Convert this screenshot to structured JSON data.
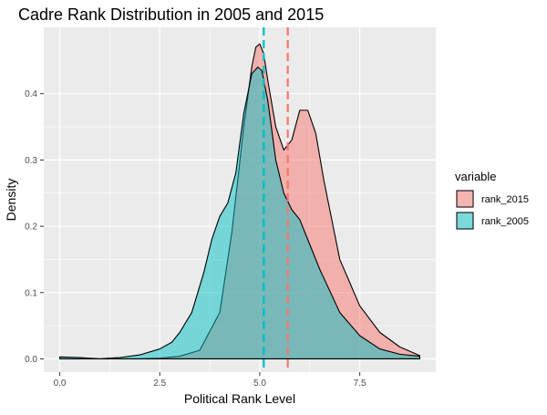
{
  "chart_data": {
    "type": "area",
    "title": "Cadre Rank Distribution in 2005 and 2015",
    "xlabel": "Political Rank Level",
    "ylabel": "Density",
    "xlim": [
      -0.4,
      9.4
    ],
    "ylim": [
      -0.02,
      0.5
    ],
    "x_ticks": [
      0.0,
      2.5,
      5.0,
      7.5
    ],
    "x_tick_labels": [
      "0.0",
      "2.5",
      "5.0",
      "7.5"
    ],
    "y_ticks": [
      0.0,
      0.1,
      0.2,
      0.3,
      0.4
    ],
    "y_tick_labels": [
      "0.0",
      "0.1",
      "0.2",
      "0.3",
      "0.4"
    ],
    "grid": true,
    "legend": {
      "title": "variable",
      "placement": "right",
      "entries": [
        "rank_2015",
        "rank_2005"
      ]
    },
    "series": [
      {
        "name": "rank_2015",
        "fill": "#F8766D",
        "mean_line_x": 5.7,
        "x": [
          0.0,
          1.0,
          2.0,
          2.5,
          3.0,
          3.5,
          4.0,
          4.3,
          4.6,
          4.8,
          4.9,
          5.0,
          5.1,
          5.2,
          5.4,
          5.6,
          5.8,
          6.0,
          6.2,
          6.4,
          6.6,
          7.0,
          7.5,
          8.0,
          8.5,
          9.0
        ],
        "y": [
          0.0,
          0.0,
          0.0,
          0.001,
          0.004,
          0.013,
          0.07,
          0.19,
          0.35,
          0.44,
          0.47,
          0.475,
          0.46,
          0.42,
          0.35,
          0.315,
          0.33,
          0.375,
          0.375,
          0.34,
          0.27,
          0.15,
          0.08,
          0.04,
          0.018,
          0.005
        ]
      },
      {
        "name": "rank_2005",
        "fill": "#00BFC4",
        "mean_line_x": 5.1,
        "x": [
          0.0,
          0.5,
          1.0,
          1.5,
          2.0,
          2.5,
          2.8,
          3.0,
          3.3,
          3.6,
          3.8,
          4.0,
          4.2,
          4.4,
          4.6,
          4.8,
          4.95,
          5.05,
          5.2,
          5.4,
          5.6,
          5.8,
          6.0,
          6.2,
          6.5,
          7.0,
          7.5,
          8.0,
          8.5,
          9.0
        ],
        "y": [
          0.003,
          0.002,
          0.0,
          0.002,
          0.006,
          0.015,
          0.025,
          0.04,
          0.07,
          0.13,
          0.18,
          0.215,
          0.235,
          0.28,
          0.37,
          0.43,
          0.44,
          0.435,
          0.39,
          0.3,
          0.25,
          0.225,
          0.21,
          0.18,
          0.135,
          0.07,
          0.035,
          0.015,
          0.007,
          0.004
        ]
      }
    ]
  }
}
